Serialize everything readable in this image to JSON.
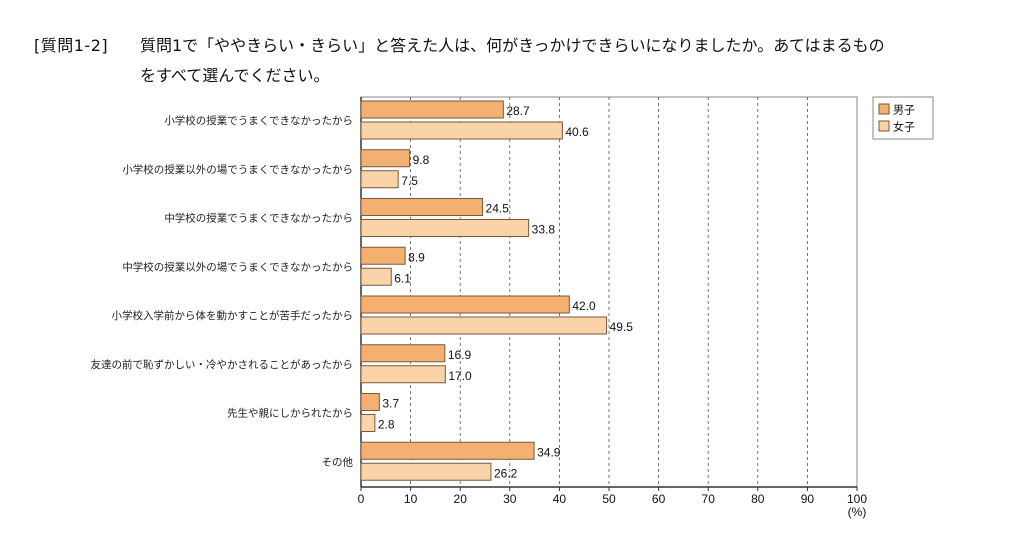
{
  "title": {
    "tag": "[質問1-2]",
    "line1": "質問1で「ややきらい・きらい」と答えた人は、何がきっかけできらいになりましたか。あてはまるもの",
    "line2": "をすべて選んでください。"
  },
  "chart_data": {
    "type": "bar",
    "orientation": "horizontal",
    "title": "[質問1-2] 質問1で「ややきらい・きらい」と答えた人は、何がきっかけできらいになりましたか。あてはまるものをすべて選んでください。",
    "categories": [
      "小学校の授業でうまくできなかったから",
      "小学校の授業以外の場でうまくできなかったから",
      "中学校の授業でうまくできなかったから",
      "中学校の授業以外の場でうまくできなかったから",
      "小学校入学前から体を動かすことが苦手だったから",
      "友達の前で恥ずかしい・冷やかされることがあったから",
      "先生や親にしかられたから",
      "その他"
    ],
    "series": [
      {
        "name": "男子",
        "color": "#f4b070",
        "values": [
          28.7,
          9.8,
          24.5,
          8.9,
          42.0,
          16.9,
          3.7,
          34.9
        ],
        "labels": [
          "28.7",
          "9.8",
          "24.5",
          "8.9",
          "42.0",
          "16.9",
          "3.7",
          "34.9"
        ]
      },
      {
        "name": "女子",
        "color": "#fad3a8",
        "values": [
          40.6,
          7.5,
          33.8,
          6.1,
          49.5,
          17.0,
          2.8,
          26.2
        ],
        "labels": [
          "40.6",
          "7.5",
          "33.8",
          "6.1",
          "49.5",
          "17.0",
          "2.8",
          "26.2"
        ]
      }
    ],
    "xlabel": "(%)",
    "ylabel": "",
    "xlim": [
      0,
      100
    ],
    "xticks": [
      "0",
      "10",
      "20",
      "30",
      "40",
      "50",
      "60",
      "70",
      "80",
      "90",
      "100"
    ],
    "grid": "vertical-dashed",
    "legend": "top-right",
    "bar_border_color": "#7a5a3a"
  }
}
